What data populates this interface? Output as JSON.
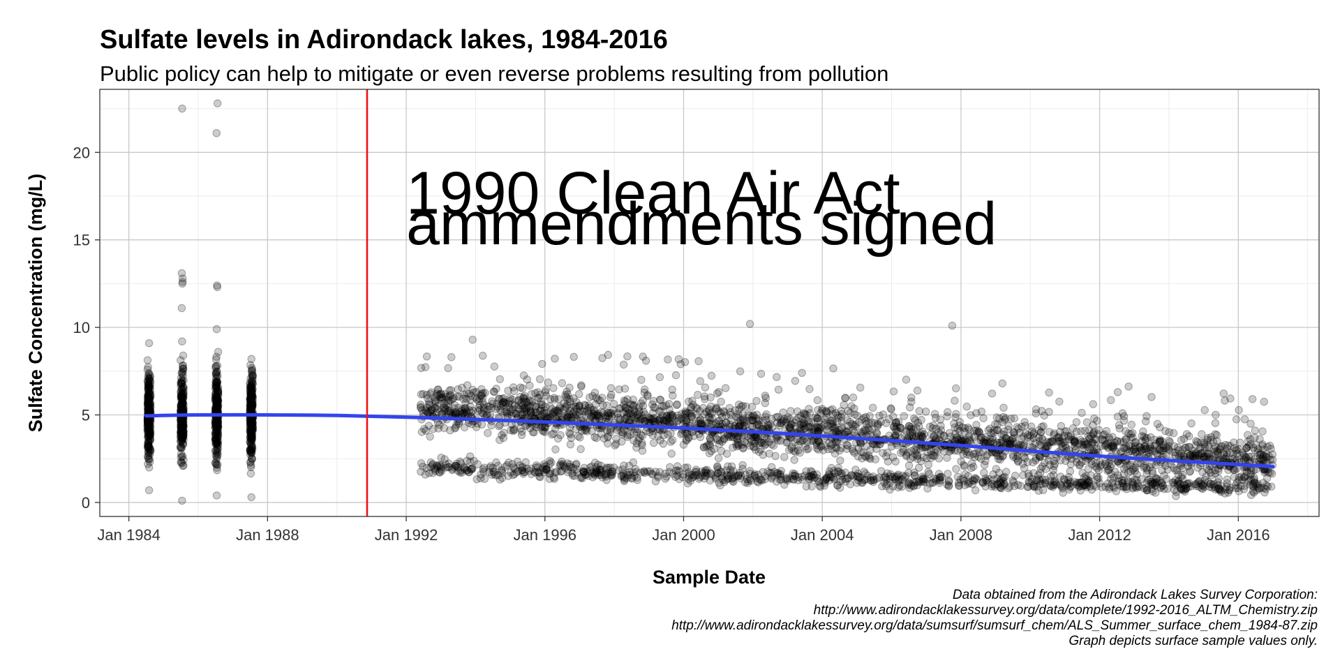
{
  "chart_data": {
    "type": "scatter",
    "title": "Sulfate levels in Adirondack lakes, 1984-2016",
    "subtitle": "Public policy can help to mitigate or even reverse problems resulting from pollution",
    "xlabel": "Sample Date",
    "ylabel": "Sulfate Concentration (mg/L)",
    "x_range": [
      "1983-03-01",
      "2018-05-01"
    ],
    "y_range": [
      -0.8,
      23.6
    ],
    "x_ticks": [
      {
        "date": "1984-01-01",
        "label": "Jan 1984"
      },
      {
        "date": "1988-01-01",
        "label": "Jan 1988"
      },
      {
        "date": "1992-01-01",
        "label": "Jan 1992"
      },
      {
        "date": "1996-01-01",
        "label": "Jan 1996"
      },
      {
        "date": "2000-01-01",
        "label": "Jan 2000"
      },
      {
        "date": "2004-01-01",
        "label": "Jan 2004"
      },
      {
        "date": "2008-01-01",
        "label": "Jan 2008"
      },
      {
        "date": "2012-01-01",
        "label": "Jan 2012"
      },
      {
        "date": "2016-01-01",
        "label": "Jan 2016"
      }
    ],
    "y_ticks": [
      0,
      5,
      10,
      15,
      20
    ],
    "grid": true,
    "point_color": "#000000",
    "point_opacity": 0.2,
    "trend_color": "#3344ee",
    "vline_color": "#ee1111",
    "vline": {
      "date": "1990-11-15"
    },
    "annotation": {
      "lines": [
        "1990 Clean Air Act",
        "ammendments signed"
      ],
      "x": "1992-01-01",
      "y": 16.5
    },
    "trend": {
      "name": "smoothed trend",
      "points": [
        [
          "1984-07-01",
          4.95
        ],
        [
          "1986-01-01",
          5.0
        ],
        [
          "1988-01-01",
          5.0
        ],
        [
          "1990-01-01",
          4.97
        ],
        [
          "1992-06-01",
          4.85
        ],
        [
          "1996-01-01",
          4.6
        ],
        [
          "2000-01-01",
          4.25
        ],
        [
          "2004-01-01",
          3.8
        ],
        [
          "2008-01-01",
          3.25
        ],
        [
          "2012-01-01",
          2.65
        ],
        [
          "2017-01-01",
          2.05
        ]
      ]
    },
    "early_sampling": [
      {
        "date": "1984-08-01",
        "min": 0.7,
        "max": 9.1,
        "center": 5.0
      },
      {
        "date": "1985-07-15",
        "min": 0.1,
        "max": 9.2,
        "center": 5.0,
        "extra": [
          22.5,
          13.1,
          12.8,
          12.6,
          12.5,
          11.1
        ]
      },
      {
        "date": "1986-07-15",
        "min": 0.4,
        "max": 9.9,
        "center": 5.0,
        "extra": [
          22.8,
          21.1,
          12.4,
          12.3
        ]
      },
      {
        "date": "1987-07-15",
        "min": 0.3,
        "max": 8.2,
        "center": 5.0
      }
    ],
    "later_sampling": {
      "start": "1992-06-01",
      "end": "2017-01-01",
      "upper_band": {
        "start_center": 5.5,
        "end_center": 2.4,
        "spread": 1.3
      },
      "lower_band": {
        "start_center": 2.0,
        "end_center": 0.8,
        "spread": 0.4
      },
      "outliers": [
        [
          "2001-12-01",
          10.2
        ],
        [
          "2007-10-01",
          10.1
        ],
        [
          "1993-12-01",
          9.3
        ],
        [
          "1998-12-01",
          8.1
        ],
        [
          "1999-12-01",
          7.9
        ],
        [
          "2003-06-01",
          7.4
        ]
      ]
    }
  },
  "caption": {
    "lines": [
      "Data obtained from the Adirondack Lakes Survey Corporation:",
      "http://www.adirondacklakessurvey.org/data/complete/1992-2016_ALTM_Chemistry.zip",
      "http://www.adirondacklakessurvey.org/data/sumsurf/sumsurf_chem/ALS_Summer_surface_chem_1984-87.zip",
      "Graph depicts surface sample values only."
    ]
  }
}
